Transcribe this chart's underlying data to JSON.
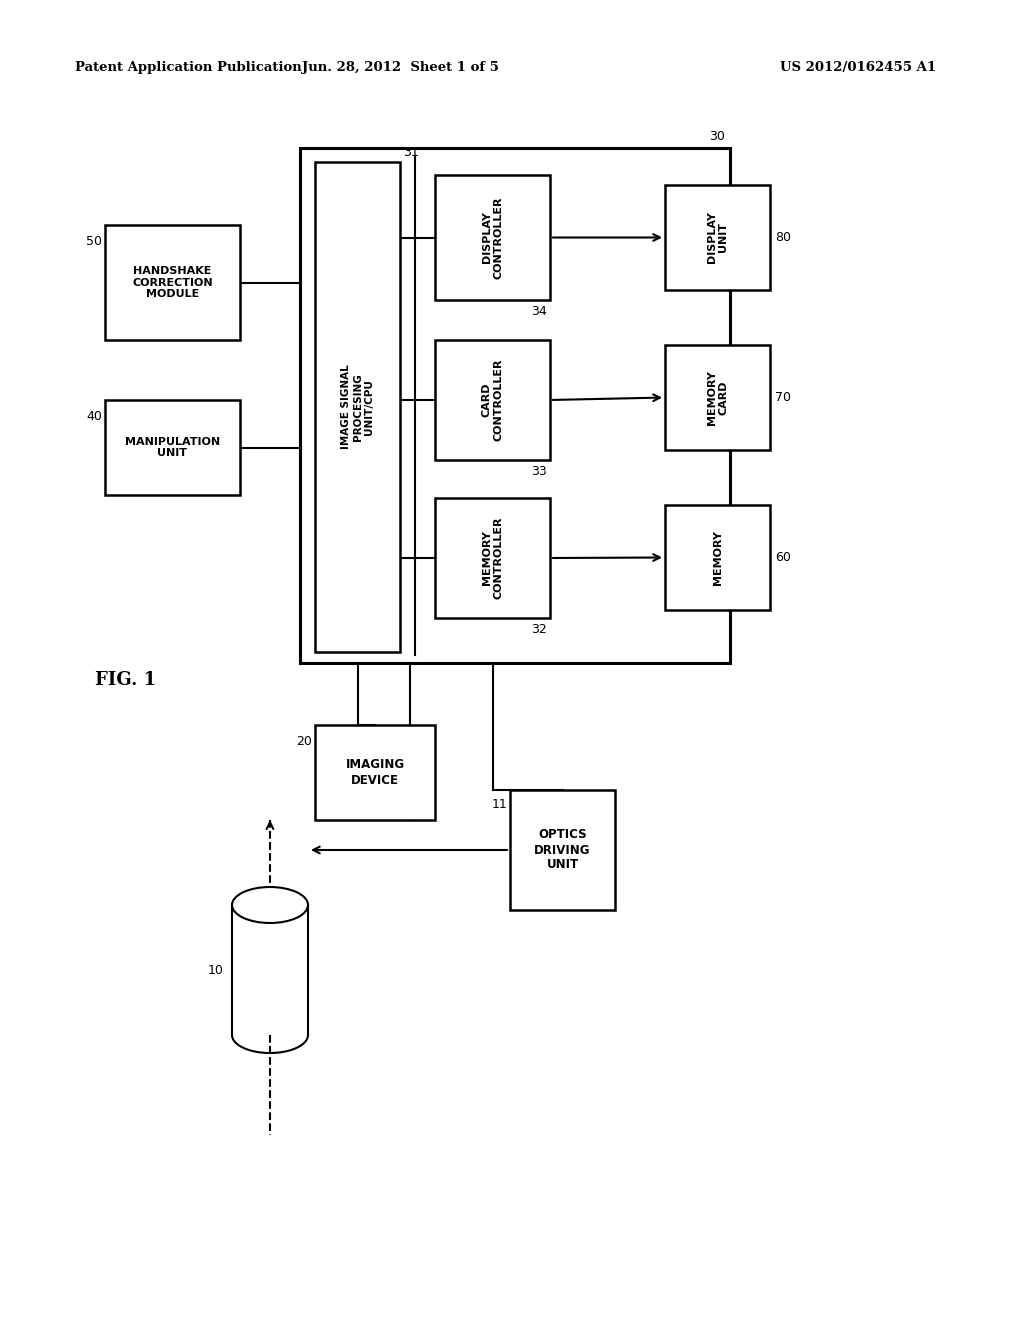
{
  "bg_color": "#ffffff",
  "header_left": "Patent Application Publication",
  "header_mid": "Jun. 28, 2012  Sheet 1 of 5",
  "header_right": "US 2012/0162455 A1",
  "fig_label": "FIG. 1"
}
